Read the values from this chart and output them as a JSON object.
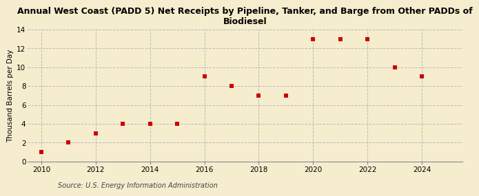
{
  "title_line1": "Annual West Coast (PADD 5) Net Receipts by Pipeline, Tanker, and Barge from Other PADDs of",
  "title_line2": "Biodiesel",
  "ylabel": "Thousand Barrels per Day",
  "source": "Source: U.S. Energy Information Administration",
  "x": [
    2010,
    2011,
    2012,
    2013,
    2014,
    2015,
    2016,
    2017,
    2018,
    2019,
    2020,
    2021,
    2022,
    2023,
    2024
  ],
  "y": [
    1,
    2,
    3,
    4,
    4,
    4,
    9,
    8,
    7,
    7,
    13,
    13,
    13,
    10,
    9
  ],
  "marker_color": "#cc0000",
  "marker": "s",
  "marker_size": 4,
  "xlim": [
    2009.5,
    2025.5
  ],
  "ylim": [
    0,
    14
  ],
  "yticks": [
    0,
    2,
    4,
    6,
    8,
    10,
    12,
    14
  ],
  "xticks": [
    2010,
    2012,
    2014,
    2016,
    2018,
    2020,
    2022,
    2024
  ],
  "grid_color": "#bbbbbb",
  "background_color": "#f5edce",
  "title_fontsize": 9,
  "label_fontsize": 7.5,
  "tick_fontsize": 7.5,
  "source_fontsize": 7
}
